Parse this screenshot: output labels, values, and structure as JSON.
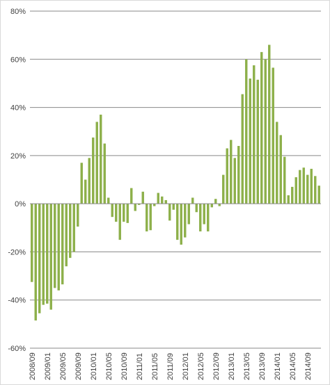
{
  "chart_data": {
    "type": "bar",
    "title": "",
    "xlabel": "",
    "ylabel": "",
    "ylim": [
      -60,
      80
    ],
    "yticks": [
      -60,
      -40,
      -20,
      0,
      20,
      40,
      60,
      80
    ],
    "ytick_labels": [
      "-60%",
      "-40%",
      "-20%",
      "0%",
      "20%",
      "40%",
      "60%",
      "80%"
    ],
    "grid": true,
    "legend": "none",
    "bar_color": "#8db04a",
    "grid_color": "#888888",
    "categories": [
      "2008/09",
      "2008/10",
      "2008/11",
      "2008/12",
      "2009/01",
      "2009/02",
      "2009/03",
      "2009/04",
      "2009/05",
      "2009/06",
      "2009/07",
      "2009/08",
      "2009/09",
      "2009/10",
      "2009/11",
      "2009/12",
      "2010/01",
      "2010/02",
      "2010/03",
      "2010/04",
      "2010/05",
      "2010/06",
      "2010/07",
      "2010/08",
      "2010/09",
      "2010/10",
      "2010/11",
      "2010/12",
      "2011/01",
      "2011/02",
      "2011/03",
      "2011/04",
      "2011/05",
      "2011/06",
      "2011/07",
      "2011/08",
      "2011/09",
      "2011/10",
      "2011/11",
      "2011/12",
      "2012/01",
      "2012/02",
      "2012/03",
      "2012/04",
      "2012/05",
      "2012/06",
      "2012/07",
      "2012/08",
      "2012/09",
      "2012/10",
      "2012/11",
      "2012/12",
      "2013/01",
      "2013/02",
      "2013/03",
      "2013/04",
      "2013/05",
      "2013/06",
      "2013/07",
      "2013/08",
      "2013/09",
      "2013/10",
      "2013/11",
      "2013/12",
      "2014/01",
      "2014/02",
      "2014/03",
      "2014/04",
      "2014/05",
      "2014/06",
      "2014/07",
      "2014/08",
      "2014/09",
      "2014/10",
      "2014/11",
      "2014/12"
    ],
    "values": [
      -32.5,
      -48.5,
      -45.5,
      -42,
      -41.5,
      -44,
      -35,
      -36,
      -33.5,
      -26,
      -22.5,
      -20,
      -9.5,
      17,
      10,
      19,
      27.5,
      34,
      37,
      25,
      2.5,
      -5.5,
      -7.5,
      -15,
      -7.5,
      -8,
      6.5,
      -3,
      -0.5,
      5,
      -11.5,
      -11,
      -1,
      4.5,
      3,
      1.5,
      -7,
      -2.5,
      -15,
      -17,
      -14,
      -8.5,
      2.5,
      -3.5,
      -11.5,
      -8.5,
      -11.5,
      -1.5,
      2,
      -1,
      12,
      23,
      26.5,
      19,
      24,
      45.5,
      60,
      52,
      57.5,
      51.5,
      63,
      60,
      66,
      56.5,
      34,
      28.5,
      19.5,
      3.5,
      7,
      11,
      14,
      15,
      12,
      14.5,
      11.5,
      7.5
    ],
    "xtick_labels": [
      "2008/09",
      "2009/01",
      "2009/05",
      "2009/09",
      "2010/01",
      "2010/05",
      "2010/09",
      "2011/01",
      "2011/05",
      "2011/09",
      "2012/01",
      "2012/05",
      "2012/09",
      "2013/01",
      "2013/05",
      "2013/09",
      "2014/01",
      "2014/05",
      "2014/09"
    ]
  }
}
